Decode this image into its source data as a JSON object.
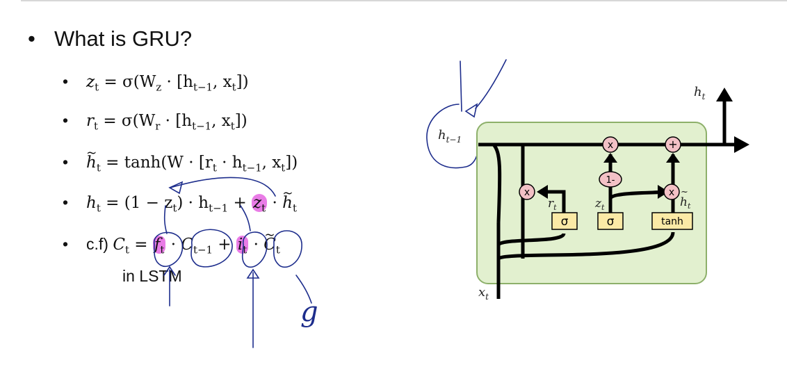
{
  "heading": "What is GRU?",
  "equations": {
    "z": {
      "lhs": "z",
      "lhs_sub": "t",
      "sigma": " = σ(W",
      "w_sub": "z",
      "rest": " · [h",
      "h_sub": "t−1",
      "x": ", x",
      "x_sub": "t",
      "close": "])"
    },
    "r": {
      "lhs": "r",
      "lhs_sub": "t",
      "sigma": " = σ(W",
      "w_sub": "r",
      "rest": " · [h",
      "h_sub": "t−1",
      "x": ", x",
      "x_sub": "t",
      "close": "])"
    },
    "htilde": {
      "lhs": "h",
      "lhs_sub": "t",
      "body": " = tanh(W · [r",
      "r_sub": "t",
      "dot": " · h",
      "h_sub": "t−1",
      "x": ", x",
      "x_sub": "t",
      "close": "])"
    },
    "h": {
      "lhs": "h",
      "lhs_sub": "t",
      "part1": " = (1 − z",
      "z_sub": "t",
      "part2": ") · h",
      "h_sub": "t−1",
      "plus": " + ",
      "z2": "z",
      "z2_sub": "t",
      "dot": " · ",
      "ht": "h",
      "ht_sub": "t"
    },
    "cf": {
      "prefix": "c.f) ",
      "c": "C",
      "c_sub": "t",
      "eq": " = ",
      "f": "f",
      "f_sub": "t",
      "dot1": " · ",
      "cprev": "C",
      "cprev_sub": "t−1",
      "plus": " + ",
      "i": "i",
      "i_sub": "t",
      "dot2": " · ",
      "ct": "C",
      "ct_sub": "t"
    }
  },
  "lstm_note": "in LSTM",
  "annotation_g": "g",
  "diagram": {
    "h_prev": "h",
    "h_prev_sub": "t−1",
    "h_out": "h",
    "h_out_sub": "t",
    "x_in": "x",
    "x_in_sub": "t",
    "r_label": "r",
    "r_sub": "t",
    "z_label": "z",
    "z_sub": "t",
    "htilde_label": "h",
    "htilde_sub": "t",
    "sigma1": "σ",
    "sigma2": "σ",
    "tanh": "tanh",
    "mult1": "x",
    "mult2": "x",
    "mult3": "x",
    "plus": "+",
    "one_minus": "1-"
  },
  "colors": {
    "highlight": "#e97ce6",
    "ink": "#1d2d8c",
    "cell_fill": "#e2f0cf",
    "cell_stroke": "#8db06a",
    "op_fill": "#f3c1c6",
    "gate_fill": "#fbeaa6"
  }
}
